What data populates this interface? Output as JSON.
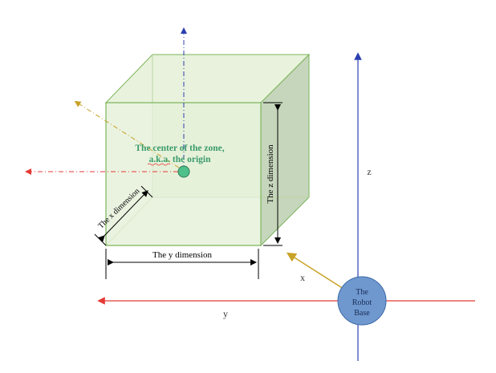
{
  "labels": {
    "zone_center_line1": "The center of the zone,",
    "zone_center_line2": "a.k.a. the origin",
    "x_dimension": "The x dimension",
    "y_dimension": "The y dimension",
    "z_dimension": "The z dimension",
    "robot_base_line1": "The",
    "robot_base_line2": "Robot",
    "robot_base_line3": "Base",
    "axis_x": "x",
    "axis_y": "y",
    "axis_z": "z"
  },
  "colors": {
    "cube_fill": "#e3efd6",
    "cube_side": "#c6d6bc",
    "cube_stroke": "#7cb55a",
    "center_label": "#3a9b6a",
    "axis_z": "#2c3fb0",
    "axis_y": "#e53935",
    "axis_x": "#c9a227",
    "robot_base": "#6f98cf"
  }
}
